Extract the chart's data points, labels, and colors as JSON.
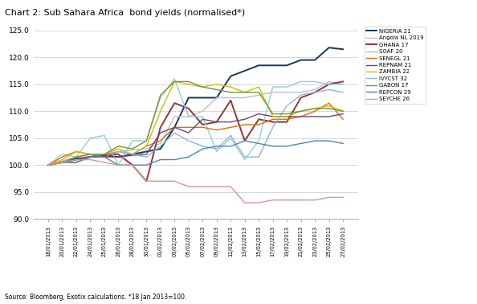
{
  "title": "Chart 2: Sub Sahara Africa  bond yields (normalised*)",
  "source_text": "Source: Bloomberg, Exotix calculations. *18 Jan 2013=100.",
  "ylim": [
    90.0,
    125.0
  ],
  "yticks": [
    90.0,
    95.0,
    100.0,
    105.0,
    110.0,
    115.0,
    120.0,
    125.0
  ],
  "dates": [
    "18/01/2013",
    "20/01/2013",
    "22/01/2013",
    "24/01/2013",
    "25/01/2013",
    "26/01/2013",
    "28/01/2013",
    "30/01/2013",
    "01/02/2013",
    "03/02/2013",
    "05/02/2013",
    "07/02/2013",
    "09/02/2013",
    "11/02/2013",
    "13/02/2013",
    "15/02/2013",
    "17/02/2013",
    "19/02/2013",
    "21/02/2013",
    "23/02/2013",
    "25/02/2013",
    "27/02/2013"
  ],
  "series": [
    {
      "name": "NIGERIA 21",
      "color": "#17375E",
      "linewidth": 1.4,
      "values": [
        100.0,
        100.5,
        101.2,
        101.5,
        101.8,
        101.5,
        102.0,
        102.5,
        103.0,
        107.0,
        112.5,
        112.5,
        112.5,
        116.5,
        117.5,
        118.5,
        118.5,
        118.5,
        119.5,
        119.5,
        121.8,
        121.5
      ]
    },
    {
      "name": "Angola NL 2019",
      "color": "#C0C0C0",
      "linewidth": 1.0,
      "values": [
        100.0,
        100.8,
        101.5,
        101.5,
        102.0,
        102.5,
        102.8,
        103.0,
        104.0,
        109.0,
        109.0,
        110.0,
        112.5,
        112.5,
        112.5,
        113.0,
        113.5,
        113.5,
        113.5,
        114.0,
        115.5,
        115.0
      ]
    },
    {
      "name": "GHANA 17",
      "color": "#943634",
      "linewidth": 1.4,
      "values": [
        100.0,
        100.5,
        101.0,
        101.5,
        102.0,
        102.0,
        100.0,
        97.0,
        107.0,
        111.5,
        110.5,
        107.5,
        108.0,
        112.0,
        104.5,
        108.5,
        108.0,
        108.0,
        112.5,
        113.5,
        115.0,
        115.5
      ]
    },
    {
      "name": "SOAF 20",
      "color": "#92CDDC",
      "linewidth": 1.0,
      "values": [
        100.0,
        102.0,
        101.5,
        105.0,
        105.5,
        100.0,
        104.5,
        104.5,
        112.5,
        116.0,
        109.0,
        109.0,
        102.5,
        105.0,
        101.0,
        104.5,
        114.5,
        114.5,
        115.5,
        115.5,
        115.0,
        115.0
      ]
    },
    {
      "name": "SENEGL 21",
      "color": "#E36C09",
      "linewidth": 1.0,
      "values": [
        100.0,
        101.5,
        102.5,
        102.0,
        101.5,
        102.5,
        102.0,
        103.5,
        104.5,
        107.0,
        107.0,
        107.0,
        106.5,
        107.0,
        107.5,
        107.5,
        108.5,
        108.5,
        109.0,
        110.0,
        111.5,
        108.5
      ]
    },
    {
      "name": "REPNAM 21",
      "color": "#60497A",
      "linewidth": 1.0,
      "values": [
        100.0,
        100.5,
        100.5,
        101.5,
        101.5,
        101.5,
        101.8,
        102.0,
        106.0,
        107.0,
        106.0,
        108.5,
        108.0,
        108.0,
        108.5,
        109.5,
        109.0,
        109.0,
        109.0,
        109.0,
        109.0,
        109.5
      ]
    },
    {
      "name": "ZAMBIA 22",
      "color": "#CCC000",
      "linewidth": 1.0,
      "values": [
        100.0,
        101.0,
        102.5,
        102.0,
        102.0,
        103.0,
        102.0,
        103.5,
        110.0,
        115.5,
        115.0,
        114.5,
        115.0,
        114.5,
        113.5,
        114.5,
        109.0,
        109.0,
        110.0,
        110.5,
        111.0,
        110.0
      ]
    },
    {
      "name": "IVYCST 32",
      "color": "#8DB4E2",
      "linewidth": 1.0,
      "values": [
        100.0,
        100.5,
        101.5,
        102.0,
        102.0,
        102.5,
        102.0,
        101.5,
        103.5,
        106.0,
        104.5,
        103.5,
        103.0,
        105.5,
        101.5,
        101.5,
        107.0,
        111.0,
        113.0,
        113.5,
        114.0,
        113.5
      ]
    },
    {
      "name": "GABON 17",
      "color": "#76933C",
      "linewidth": 1.0,
      "values": [
        100.0,
        100.5,
        101.5,
        102.0,
        102.0,
        103.5,
        103.0,
        104.5,
        113.0,
        115.5,
        115.5,
        114.5,
        114.0,
        113.5,
        113.5,
        113.5,
        109.5,
        109.5,
        110.0,
        110.5,
        110.5,
        110.0
      ]
    },
    {
      "name": "REPCON 29",
      "color": "#4F81BD",
      "linewidth": 1.0,
      "values": [
        100.0,
        100.5,
        100.5,
        101.5,
        101.5,
        100.0,
        100.0,
        100.0,
        101.0,
        101.0,
        101.5,
        103.0,
        103.5,
        103.5,
        104.5,
        104.0,
        103.5,
        103.5,
        104.0,
        104.5,
        104.5,
        104.0
      ]
    },
    {
      "name": "SEYCHE 26",
      "color": "#D99694",
      "linewidth": 1.0,
      "values": [
        100.0,
        100.5,
        101.0,
        101.0,
        100.5,
        100.0,
        100.0,
        97.0,
        97.0,
        97.0,
        96.0,
        96.0,
        96.0,
        96.0,
        93.0,
        93.0,
        93.5,
        93.5,
        93.5,
        93.5,
        94.0,
        94.0
      ]
    }
  ]
}
